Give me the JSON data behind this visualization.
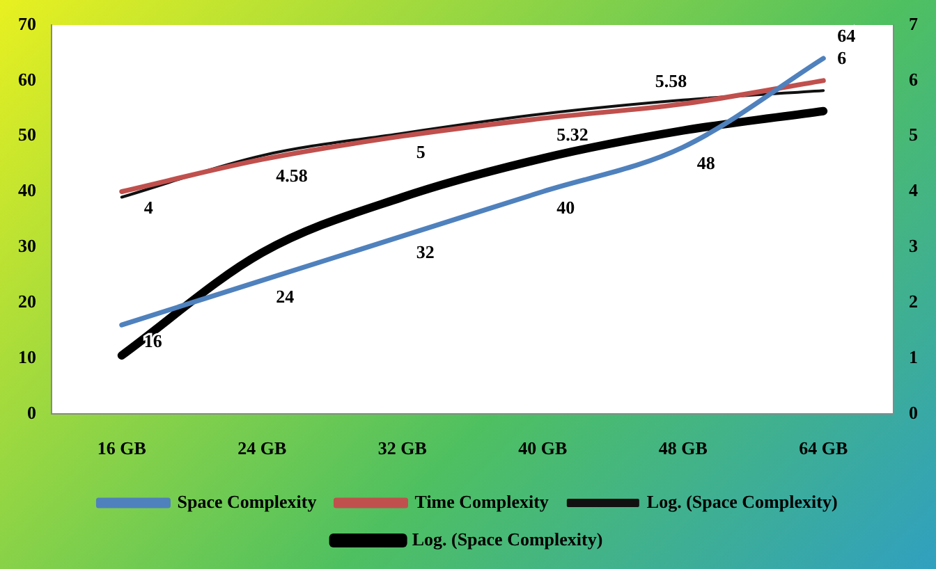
{
  "chart_data": {
    "type": "line",
    "categories": [
      "16 GB",
      "24 GB",
      "32 GB",
      "40 GB",
      "48 GB",
      "64 GB"
    ],
    "series": [
      {
        "name": "Space Complexity",
        "color": "#4f81bd",
        "values": [
          16,
          24,
          32,
          40,
          48,
          64
        ],
        "value_labels": [
          "16",
          "24",
          "32",
          "40",
          "48",
          "64"
        ]
      },
      {
        "name": "Time Complexity",
        "color": "#c0504d",
        "values": [
          4,
          4.58,
          5,
          5.32,
          5.58,
          6
        ],
        "axis": "y2",
        "value_labels": [
          "4",
          "4.58",
          "5",
          "5.32",
          "5.58",
          "6"
        ]
      },
      {
        "name": "Log. (Space Complexity)",
        "color": "#111111",
        "values": [
          3.9,
          4.65,
          5.05,
          5.4,
          5.65,
          5.82
        ],
        "axis": "y2",
        "line_style": "solid"
      },
      {
        "name": "Log. (Space Complexity)",
        "color": "#000000",
        "values": [
          10.5,
          29,
          39,
          46,
          51,
          54.5
        ]
      }
    ],
    "ylim": [
      0,
      70
    ],
    "yticks": [
      0,
      10,
      20,
      30,
      40,
      50,
      60,
      70
    ],
    "y2lim": [
      0,
      7
    ],
    "y2ticks": [
      0,
      1,
      2,
      3,
      4,
      5,
      6,
      7
    ],
    "grid": false,
    "legend": "bottom",
    "marker": "none"
  }
}
